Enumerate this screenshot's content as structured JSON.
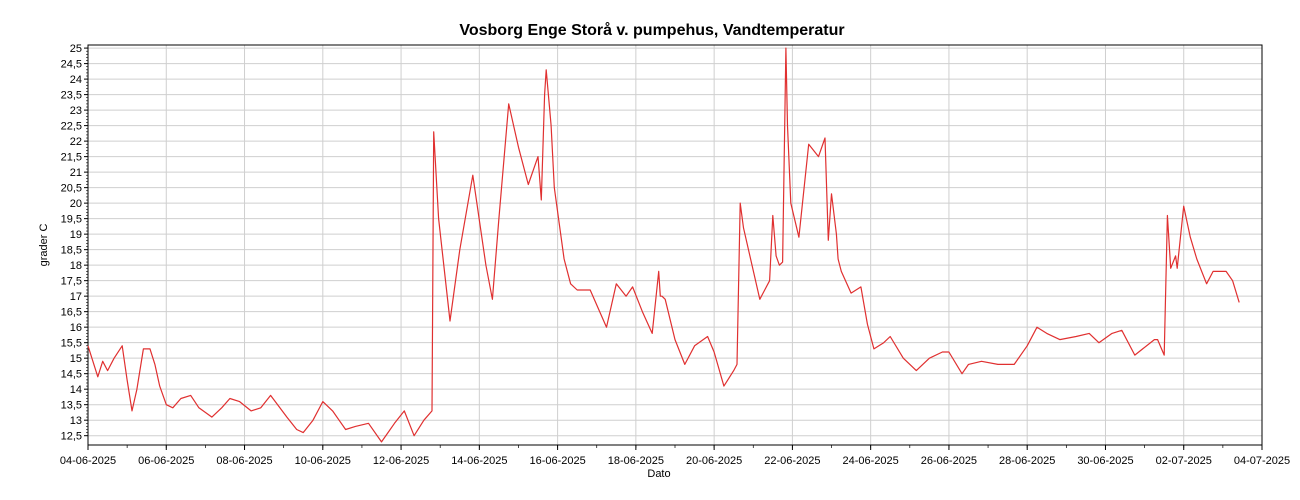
{
  "chart_data": {
    "type": "line",
    "title": "Vosborg Enge Storå v. pumpehus, Vandtemperatur",
    "xlabel": "Dato",
    "ylabel": "grader C",
    "ylim": [
      12.2,
      25.1
    ],
    "grid": true,
    "legend": "none",
    "x_ticks": [
      "04-06-2025",
      "06-06-2025",
      "08-06-2025",
      "10-06-2025",
      "12-06-2025",
      "14-06-2025",
      "16-06-2025",
      "18-06-2025",
      "20-06-2025",
      "22-06-2025",
      "24-06-2025",
      "26-06-2025",
      "28-06-2025",
      "30-06-2025",
      "02-07-2025",
      "04-07-2025"
    ],
    "y_ticks": [
      "12,5",
      "13",
      "13,5",
      "14",
      "14,5",
      "15",
      "15,5",
      "16",
      "16,5",
      "17",
      "17,5",
      "18",
      "18,5",
      "19",
      "19,5",
      "20",
      "20,5",
      "21",
      "21,5",
      "22",
      "22,5",
      "23",
      "23,5",
      "24",
      "24,5",
      "25"
    ],
    "series": [
      {
        "color": "#e03030",
        "x": [
          "04-06-2025 00:00",
          "04-06-2025 06:00",
          "04-06-2025 09:00",
          "04-06-2025 12:00",
          "04-06-2025 16:00",
          "04-06-2025 21:00",
          "05-06-2025 00:00",
          "05-06-2025 03:00",
          "05-06-2025 06:00",
          "05-06-2025 10:00",
          "05-06-2025 14:00",
          "05-06-2025 17:00",
          "05-06-2025 20:00",
          "06-06-2025 00:00",
          "06-06-2025 04:00",
          "06-06-2025 09:00",
          "06-06-2025 15:00",
          "06-06-2025 20:00",
          "07-06-2025 04:00",
          "07-06-2025 10:00",
          "07-06-2025 15:00",
          "07-06-2025 21:00",
          "08-06-2025 04:00",
          "08-06-2025 10:00",
          "08-06-2025 16:00",
          "09-06-2025 02:00",
          "09-06-2025 08:00",
          "09-06-2025 12:00",
          "09-06-2025 18:00",
          "10-06-2025 00:00",
          "10-06-2025 06:00",
          "10-06-2025 10:00",
          "10-06-2025 14:00",
          "10-06-2025 20:00",
          "11-06-2025 04:00",
          "11-06-2025 12:00",
          "11-06-2025 16:00",
          "11-06-2025 20:00",
          "12-06-2025 02:00",
          "12-06-2025 08:00",
          "12-06-2025 14:00",
          "12-06-2025 19:00",
          "12-06-2025 20:00",
          "12-06-2025 23:00",
          "13-06-2025 06:00",
          "13-06-2025 12:00",
          "13-06-2025 20:00",
          "14-06-2025 04:00",
          "14-06-2025 08:00",
          "14-06-2025 12:00",
          "14-06-2025 18:00",
          "15-06-2025 00:00",
          "15-06-2025 06:00",
          "15-06-2025 12:00",
          "15-06-2025 14:00",
          "15-06-2025 16:00",
          "15-06-2025 17:00",
          "15-06-2025 20:00",
          "15-06-2025 22:00",
          "16-06-2025 04:00",
          "16-06-2025 08:00",
          "16-06-2025 12:00",
          "16-06-2025 20:00",
          "17-06-2025 06:00",
          "17-06-2025 12:00",
          "17-06-2025 18:00",
          "17-06-2025 22:00",
          "18-06-2025 04:00",
          "18-06-2025 10:00",
          "18-06-2025 14:00",
          "18-06-2025 15:00",
          "18-06-2025 16:00",
          "18-06-2025 18:00",
          "19-06-2025 00:00",
          "19-06-2025 06:00",
          "19-06-2025 12:00",
          "19-06-2025 20:00",
          "20-06-2025 00:00",
          "20-06-2025 06:00",
          "20-06-2025 12:00",
          "20-06-2025 14:00",
          "20-06-2025 16:00",
          "20-06-2025 18:00",
          "21-06-2025 04:00",
          "21-06-2025 10:00",
          "21-06-2025 12:00",
          "21-06-2025 14:00",
          "21-06-2025 16:00",
          "21-06-2025 18:00",
          "21-06-2025 20:00",
          "21-06-2025 21:00",
          "21-06-2025 23:00",
          "22-06-2025 04:00",
          "22-06-2025 10:00",
          "22-06-2025 16:00",
          "22-06-2025 20:00",
          "22-06-2025 22:00",
          "23-06-2025 00:00",
          "23-06-2025 03:00",
          "23-06-2025 04:00",
          "23-06-2025 06:00",
          "23-06-2025 12:00",
          "23-06-2025 18:00",
          "23-06-2025 22:00",
          "24-06-2025 02:00",
          "24-06-2025 08:00",
          "24-06-2025 12:00",
          "24-06-2025 20:00",
          "25-06-2025 04:00",
          "25-06-2025 12:00",
          "25-06-2025 20:00",
          "26-06-2025 00:00",
          "26-06-2025 08:00",
          "26-06-2025 12:00",
          "26-06-2025 20:00",
          "27-06-2025 06:00",
          "27-06-2025 16:00",
          "28-06-2025 00:00",
          "28-06-2025 06:00",
          "28-06-2025 12:00",
          "28-06-2025 20:00",
          "29-06-2025 06:00",
          "29-06-2025 14:00",
          "29-06-2025 20:00",
          "30-06-2025 04:00",
          "30-06-2025 10:00",
          "30-06-2025 18:00",
          "01-07-2025 06:00",
          "01-07-2025 08:00",
          "01-07-2025 12:00",
          "01-07-2025 14:00",
          "01-07-2025 16:00",
          "01-07-2025 19:00",
          "01-07-2025 20:00",
          "02-07-2025 00:00",
          "02-07-2025 04:00",
          "02-07-2025 08:00",
          "02-07-2025 14:00",
          "02-07-2025 18:00",
          "03-07-2025 02:00",
          "03-07-2025 06:00",
          "03-07-2025 10:00"
        ],
        "y": [
          15.4,
          14.4,
          14.9,
          14.6,
          15.0,
          15.4,
          14.3,
          13.3,
          14.0,
          15.3,
          15.3,
          14.8,
          14.1,
          13.5,
          13.4,
          13.7,
          13.8,
          13.4,
          13.1,
          13.4,
          13.7,
          13.6,
          13.3,
          13.4,
          13.8,
          13.1,
          12.7,
          12.6,
          13.0,
          13.6,
          13.3,
          13.0,
          12.7,
          12.8,
          12.9,
          12.3,
          12.6,
          12.9,
          13.3,
          12.5,
          13.0,
          13.3,
          22.3,
          19.5,
          16.2,
          18.5,
          20.9,
          18.0,
          16.9,
          19.5,
          23.2,
          21.8,
          20.6,
          21.5,
          20.1,
          23.5,
          24.3,
          22.5,
          20.5,
          18.2,
          17.4,
          17.2,
          17.2,
          16.0,
          17.4,
          17.0,
          17.3,
          16.5,
          15.8,
          17.8,
          17.0,
          17.0,
          16.9,
          15.6,
          14.8,
          15.4,
          15.7,
          15.2,
          14.1,
          14.6,
          14.8,
          20.0,
          19.2,
          16.9,
          17.5,
          19.6,
          18.3,
          18.0,
          18.1,
          25.0,
          22.5,
          20.0,
          18.9,
          21.9,
          21.5,
          22.1,
          18.8,
          20.3,
          19.0,
          18.2,
          17.8,
          17.1,
          17.3,
          16.1,
          15.3,
          15.5,
          15.7,
          15.0,
          14.6,
          15.0,
          15.2,
          15.2,
          14.5,
          14.8,
          14.9,
          14.8,
          14.8,
          15.4,
          16.0,
          15.8,
          15.6,
          15.7,
          15.8,
          15.5,
          15.8,
          15.9,
          15.1,
          15.6,
          15.6,
          15.1,
          19.6,
          17.9,
          18.3,
          17.9,
          19.9,
          18.9,
          18.2,
          17.4,
          17.8,
          17.8,
          17.5,
          16.8
        ]
      }
    ]
  }
}
